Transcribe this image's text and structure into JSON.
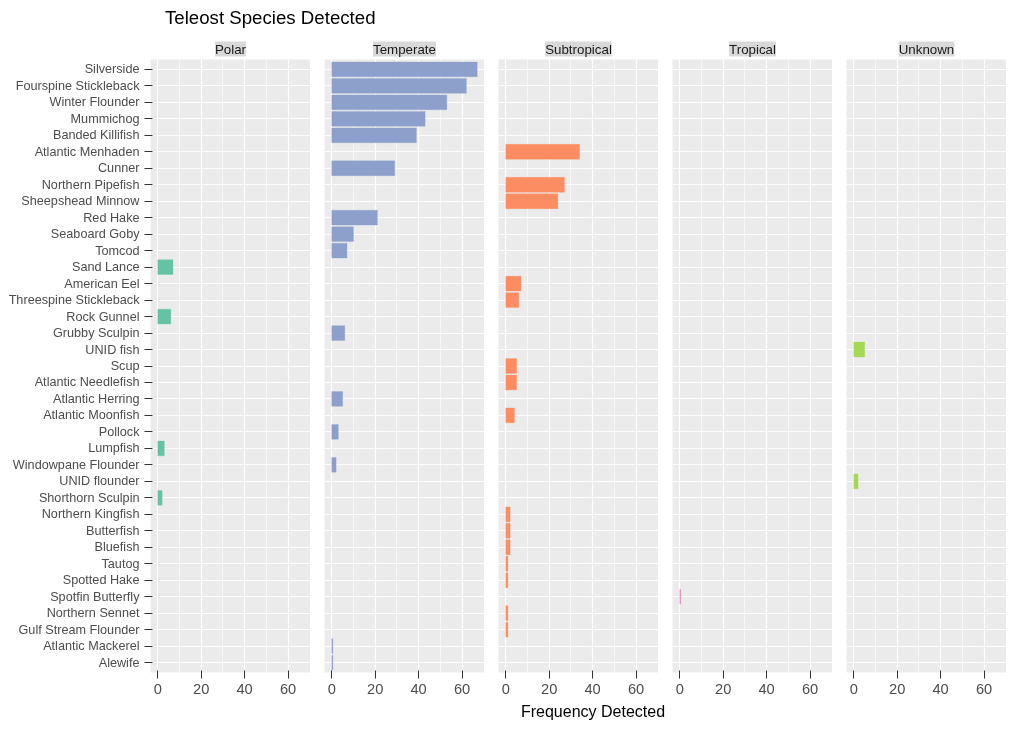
{
  "chart_data": [
    {
      "type": "bar",
      "orientation": "horizontal",
      "title": "Teleost Species Detected",
      "grid": true,
      "categories": [
        "Silverside",
        "Fourspine Stickleback",
        "Winter Flounder",
        "Mummichog",
        "Banded Killifish",
        "Atlantic Menhaden",
        "Cunner",
        "Northern Pipefish",
        "Sheepshead Minnow",
        "Red Hake",
        "Seaboard Goby",
        "Tomcod",
        "Sand Lance",
        "American Eel",
        "Threespine Stickleback",
        "Rock Gunnel",
        "Grubby Sculpin",
        "UNID fish",
        "Scup",
        "Atlantic Needlefish",
        "Atlantic Herring",
        "Atlantic Moonfish",
        "Pollock",
        "Lumpfish",
        "Windowpane Flounder",
        "UNID flounder",
        "Shorthorn Sculpin",
        "Northern Kingfish",
        "Butterfish",
        "Bluefish",
        "Tautog",
        "Spotted Hake",
        "Spotfin Butterfly",
        "Northern Sennet",
        "Gulf Stream Flounder",
        "Atlantic Mackerel",
        "Alewife"
      ],
      "xlim": [
        -3.35,
        70.35
      ],
      "xticks": [
        0,
        20,
        40,
        60
      ],
      "series": [
        {
          "name": "Polar",
          "color": "#66c2a5",
          "values": [
            null,
            null,
            null,
            null,
            null,
            null,
            null,
            null,
            null,
            null,
            null,
            null,
            7,
            null,
            null,
            6,
            null,
            null,
            null,
            null,
            null,
            null,
            null,
            3,
            null,
            null,
            2,
            null,
            null,
            null,
            null,
            null,
            null,
            null,
            null,
            null,
            null
          ]
        }
      ]
    },
    {
      "type": "bar",
      "orientation": "horizontal",
      "grid": true,
      "tick_labels": "x",
      "xlim": [
        -3.35,
        70.35
      ],
      "xticks": [
        0,
        20,
        40,
        60
      ],
      "series": [
        {
          "name": "Temperate",
          "color": "#8da0cb",
          "values": [
            67,
            62,
            53,
            43,
            39,
            null,
            29,
            null,
            null,
            21,
            10,
            7,
            null,
            null,
            null,
            null,
            6,
            null,
            null,
            null,
            5,
            null,
            3,
            null,
            2,
            null,
            null,
            null,
            null,
            null,
            null,
            null,
            null,
            null,
            null,
            0.5,
            0.5
          ]
        }
      ]
    },
    {
      "type": "bar",
      "orientation": "horizontal",
      "grid": true,
      "tick_labels": "x",
      "xlabel": "Frequency Detected",
      "xlim": [
        -3.35,
        70.35
      ],
      "xticks": [
        0,
        20,
        40,
        60
      ],
      "series": [
        {
          "name": "Subtropical",
          "color": "#fc8d62",
          "values": [
            null,
            null,
            null,
            null,
            null,
            34,
            null,
            27,
            24,
            null,
            null,
            null,
            null,
            7,
            6,
            null,
            null,
            null,
            5,
            5,
            null,
            4,
            null,
            null,
            null,
            null,
            null,
            2,
            2,
            2,
            1,
            1,
            null,
            1,
            1,
            null,
            null
          ]
        }
      ]
    },
    {
      "type": "bar",
      "orientation": "horizontal",
      "grid": true,
      "tick_labels": "x",
      "xlim": [
        -3.35,
        70.35
      ],
      "xticks": [
        0,
        20,
        40,
        60
      ],
      "series": [
        {
          "name": "Tropical",
          "color": "#e78ac3",
          "values": [
            null,
            null,
            null,
            null,
            null,
            null,
            null,
            null,
            null,
            null,
            null,
            null,
            null,
            null,
            null,
            null,
            null,
            null,
            null,
            null,
            null,
            null,
            null,
            null,
            null,
            null,
            null,
            null,
            null,
            null,
            null,
            null,
            0.5,
            null,
            null,
            null,
            null
          ]
        }
      ]
    },
    {
      "type": "bar",
      "orientation": "horizontal",
      "grid": true,
      "tick_labels": "x",
      "xlim": [
        -3.35,
        70.35
      ],
      "xticks": [
        0,
        20,
        40,
        60
      ],
      "series": [
        {
          "name": "Unknown",
          "color": "#a6d854",
          "values": [
            null,
            null,
            null,
            null,
            null,
            null,
            null,
            null,
            null,
            null,
            null,
            null,
            null,
            null,
            null,
            null,
            null,
            5,
            null,
            null,
            null,
            null,
            null,
            null,
            null,
            2,
            null,
            null,
            null,
            null,
            null,
            null,
            null,
            null,
            null,
            null,
            null
          ]
        }
      ]
    }
  ]
}
